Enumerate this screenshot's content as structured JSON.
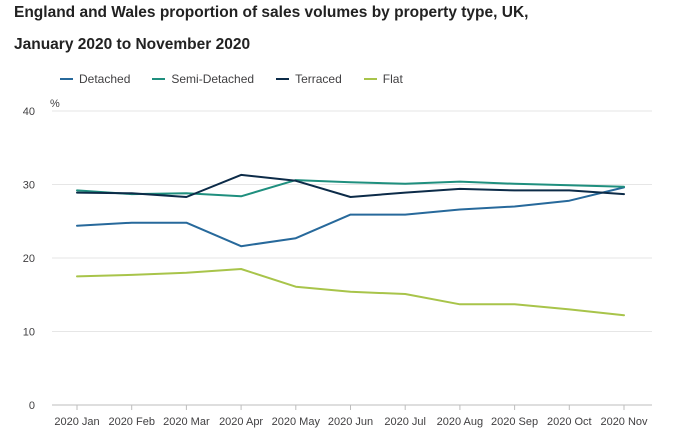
{
  "chart_data": {
    "type": "line",
    "title_lines": [
      "England and Wales proportion of sales volumes by property type, UK,",
      "January 2020 to November 2020"
    ],
    "ylabel": "%",
    "xlabel": "",
    "ylim": [
      0,
      40
    ],
    "yticks": [
      0,
      10,
      20,
      30,
      40
    ],
    "grid": true,
    "legend_position": "top-left",
    "categories": [
      "2020 Jan",
      "2020 Feb",
      "2020 Mar",
      "2020 Apr",
      "2020 May",
      "2020 Jun",
      "2020 Jul",
      "2020 Aug",
      "2020 Sep",
      "2020 Oct",
      "2020 Nov"
    ],
    "series": [
      {
        "name": "Detached",
        "color": "#27699b",
        "values": [
          24.4,
          24.8,
          24.8,
          21.6,
          22.7,
          25.9,
          25.9,
          26.6,
          27.0,
          27.8,
          29.6
        ]
      },
      {
        "name": "Semi-Detached",
        "color": "#1f8f7e",
        "values": [
          29.2,
          28.7,
          28.8,
          28.4,
          30.6,
          30.3,
          30.1,
          30.4,
          30.1,
          29.9,
          29.7
        ]
      },
      {
        "name": "Terraced",
        "color": "#0c2b48",
        "values": [
          28.9,
          28.8,
          28.3,
          31.3,
          30.5,
          28.3,
          28.9,
          29.4,
          29.2,
          29.2,
          28.7
        ]
      },
      {
        "name": "Flat",
        "color": "#a8c44a",
        "values": [
          17.5,
          17.7,
          18.0,
          18.5,
          16.1,
          15.4,
          15.1,
          13.7,
          13.7,
          13.0,
          12.2
        ]
      }
    ]
  }
}
